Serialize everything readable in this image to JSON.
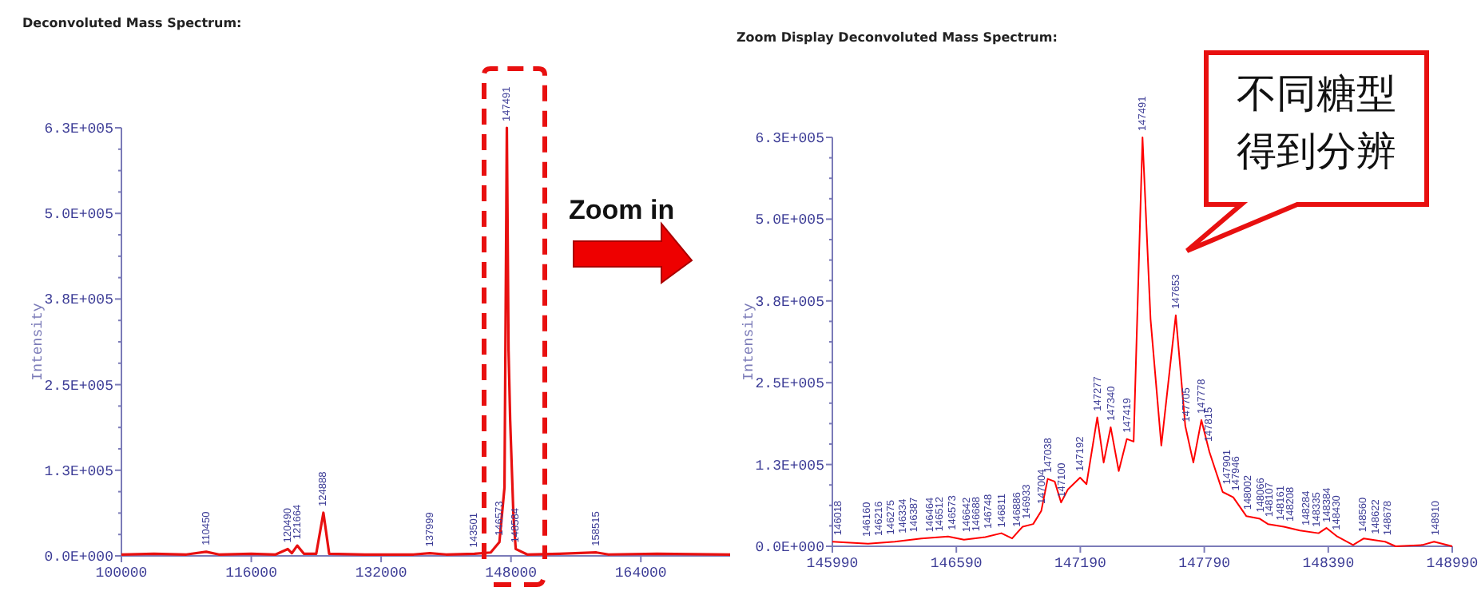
{
  "chart_data": [
    {
      "type": "line",
      "title": "Deconvoluted Mass Spectrum:",
      "ylabel": "Intensity",
      "xlim": [
        100000,
        175000
      ],
      "ylim": [
        0,
        625000
      ],
      "xticks": [
        100000,
        116000,
        132000,
        148000,
        164000
      ],
      "yticks": [
        {
          "value": 0,
          "label": "0.0E+000"
        },
        {
          "value": 31250,
          "label": null
        },
        {
          "value": 62500,
          "label": null
        },
        {
          "value": 93750,
          "label": null
        },
        {
          "value": 125000,
          "label": "1.3E+005"
        },
        {
          "value": 156250,
          "label": null
        },
        {
          "value": 187500,
          "label": null
        },
        {
          "value": 218750,
          "label": null
        },
        {
          "value": 250000,
          "label": "2.5E+005"
        },
        {
          "value": 281250,
          "label": null
        },
        {
          "value": 312500,
          "label": null
        },
        {
          "value": 343750,
          "label": null
        },
        {
          "value": 375000,
          "label": "3.8E+005"
        },
        {
          "value": 406250,
          "label": null
        },
        {
          "value": 437500,
          "label": null
        },
        {
          "value": 468750,
          "label": null
        },
        {
          "value": 500000,
          "label": "5.0E+005"
        },
        {
          "value": 531250,
          "label": null
        },
        {
          "value": 562500,
          "label": null
        },
        {
          "value": 593750,
          "label": null
        },
        {
          "value": 625000,
          "label": "6.3E+005"
        }
      ],
      "series": [
        {
          "color": "#e81010",
          "x": [
            100000,
            104000,
            108000,
            110450,
            112000,
            116000,
            119000,
            120490,
            121000,
            121664,
            122500,
            124000,
            124888,
            125600,
            130000,
            136000,
            137999,
            140000,
            143501,
            145500,
            146573,
            147200,
            147491,
            147700,
            147900,
            148300,
            148584,
            150000,
            154000,
            158515,
            160000,
            166000,
            175000
          ],
          "values": [
            2000,
            3000,
            2000,
            6000,
            2000,
            3000,
            2000,
            10000,
            4000,
            15000,
            3000,
            3000,
            63000,
            3000,
            2000,
            2000,
            4000,
            2000,
            3000,
            5000,
            20000,
            100000,
            625000,
            300000,
            198000,
            60000,
            10000,
            2000,
            3000,
            5000,
            2000,
            3000,
            2000
          ]
        }
      ],
      "annotations": [
        {
          "text": "110450",
          "x": 110450,
          "y": 6000
        },
        {
          "text": "120490",
          "x": 120490,
          "y": 10000
        },
        {
          "text": "121664",
          "x": 121664,
          "y": 15000
        },
        {
          "text": "124888",
          "x": 124888,
          "y": 63000
        },
        {
          "text": "137999",
          "x": 137999,
          "y": 4000
        },
        {
          "text": "143501",
          "x": 143501,
          "y": 3000
        },
        {
          "text": "146573",
          "x": 146573,
          "y": 20000
        },
        {
          "text": "147491",
          "x": 147491,
          "y": 625000
        },
        {
          "text": "148584",
          "x": 148584,
          "y": 10000
        },
        {
          "text": "158515",
          "x": 158515,
          "y": 5000
        },
        "Zoom in"
      ]
    },
    {
      "type": "line",
      "title": "Zoom Display Deconvoluted Mass Spectrum:",
      "ylabel": "Intensity",
      "xlim": [
        145990,
        148990
      ],
      "ylim": [
        0,
        625000
      ],
      "xticks": [
        145990,
        146590,
        147190,
        147790,
        148390,
        148990
      ],
      "yticks": [
        {
          "value": 0,
          "label": "0.0E+000"
        },
        {
          "value": 31250,
          "label": null
        },
        {
          "value": 62500,
          "label": null
        },
        {
          "value": 93750,
          "label": null
        },
        {
          "value": 125000,
          "label": "1.3E+005"
        },
        {
          "value": 156250,
          "label": null
        },
        {
          "value": 187500,
          "label": null
        },
        {
          "value": 218750,
          "label": null
        },
        {
          "value": 250000,
          "label": "2.5E+005"
        },
        {
          "value": 281250,
          "label": null
        },
        {
          "value": 312500,
          "label": null
        },
        {
          "value": 343750,
          "label": null
        },
        {
          "value": 375000,
          "label": "3.8E+005"
        },
        {
          "value": 406250,
          "label": null
        },
        {
          "value": 437500,
          "label": null
        },
        {
          "value": 468750,
          "label": null
        },
        {
          "value": 500000,
          "label": "5.0E+005"
        },
        {
          "value": 531250,
          "label": null
        },
        {
          "value": 562500,
          "label": null
        },
        {
          "value": 593750,
          "label": null
        },
        {
          "value": 625000,
          "label": "6.3E+005"
        }
      ],
      "series": [
        {
          "color": "#ff0000",
          "x": [
            145990,
            146163,
            146292,
            146421,
            146550,
            146627,
            146730,
            146808,
            146860,
            146911,
            146962,
            147001,
            147032,
            147066,
            147097,
            147130,
            147189,
            147220,
            147272,
            147303,
            147337,
            147376,
            147415,
            147448,
            147491,
            147530,
            147582,
            147652,
            147698,
            147737,
            147776,
            147815,
            147879,
            147930,
            147994,
            148059,
            148098,
            148175,
            148253,
            148343,
            148381,
            148433,
            148510,
            148562,
            148665,
            148716,
            148845,
            148902,
            148990
          ],
          "values": [
            7000,
            4000,
            7000,
            12000,
            15000,
            10000,
            14000,
            20000,
            12000,
            30000,
            34000,
            54000,
            103000,
            99000,
            67000,
            87000,
            105000,
            95000,
            197000,
            128000,
            182000,
            115000,
            164000,
            160000,
            625000,
            347000,
            154000,
            353000,
            184000,
            128000,
            193000,
            144000,
            83000,
            75000,
            46000,
            42000,
            34000,
            30000,
            24000,
            20000,
            28000,
            15000,
            2000,
            12000,
            7000,
            0,
            2000,
            7000,
            0
          ]
        }
      ],
      "annotations": [
        {
          "text": "146018",
          "x": 146018,
          "y": 7000
        },
        {
          "text": "146160",
          "x": 146160,
          "y": 5000
        },
        {
          "text": "146216",
          "x": 146216,
          "y": 6000
        },
        {
          "text": "146275",
          "x": 146275,
          "y": 8000
        },
        {
          "text": "146334",
          "x": 146334,
          "y": 10000
        },
        {
          "text": "146387",
          "x": 146387,
          "y": 12000
        },
        {
          "text": "146464",
          "x": 146464,
          "y": 12000
        },
        {
          "text": "146512",
          "x": 146512,
          "y": 13000
        },
        {
          "text": "146573",
          "x": 146573,
          "y": 15000
        },
        {
          "text": "146642",
          "x": 146642,
          "y": 12000
        },
        {
          "text": "146688",
          "x": 146688,
          "y": 13000
        },
        {
          "text": "146748",
          "x": 146748,
          "y": 17000
        },
        {
          "text": "146811",
          "x": 146811,
          "y": 19000
        },
        {
          "text": "146886",
          "x": 146886,
          "y": 20000
        },
        {
          "text": "146933",
          "x": 146933,
          "y": 32000
        },
        {
          "text": "147004",
          "x": 147004,
          "y": 55000
        },
        {
          "text": "147038",
          "x": 147038,
          "y": 103000
        },
        {
          "text": "147100",
          "x": 147100,
          "y": 65000
        },
        {
          "text": "147192",
          "x": 147192,
          "y": 105000
        },
        {
          "text": "147277",
          "x": 147277,
          "y": 197000
        },
        {
          "text": "147340",
          "x": 147340,
          "y": 182000
        },
        {
          "text": "147419",
          "x": 147419,
          "y": 164000
        },
        {
          "text": "147491",
          "x": 147491,
          "y": 625000
        },
        {
          "text": "147653",
          "x": 147653,
          "y": 353000
        },
        {
          "text": "147705",
          "x": 147705,
          "y": 180000
        },
        {
          "text": "147778",
          "x": 147778,
          "y": 193000
        },
        {
          "text": "147815",
          "x": 147815,
          "y": 150000
        },
        {
          "text": "147901",
          "x": 147901,
          "y": 85000
        },
        {
          "text": "147946",
          "x": 147946,
          "y": 75000
        },
        {
          "text": "148002",
          "x": 148002,
          "y": 46000
        },
        {
          "text": "148066",
          "x": 148066,
          "y": 42000
        },
        {
          "text": "148107",
          "x": 148107,
          "y": 35000
        },
        {
          "text": "148161",
          "x": 148161,
          "y": 30000
        },
        {
          "text": "148208",
          "x": 148208,
          "y": 28000
        },
        {
          "text": "148284",
          "x": 148284,
          "y": 22000
        },
        {
          "text": "148335",
          "x": 148335,
          "y": 20000
        },
        {
          "text": "148384",
          "x": 148384,
          "y": 27000
        },
        {
          "text": "148430",
          "x": 148430,
          "y": 15000
        },
        {
          "text": "148560",
          "x": 148560,
          "y": 12000
        },
        {
          "text": "148622",
          "x": 148622,
          "y": 9000
        },
        {
          "text": "148678",
          "x": 148678,
          "y": 7000
        },
        {
          "text": "148910",
          "x": 148910,
          "y": 7000
        },
        "不同糖型",
        "得到分辨"
      ]
    }
  ]
}
